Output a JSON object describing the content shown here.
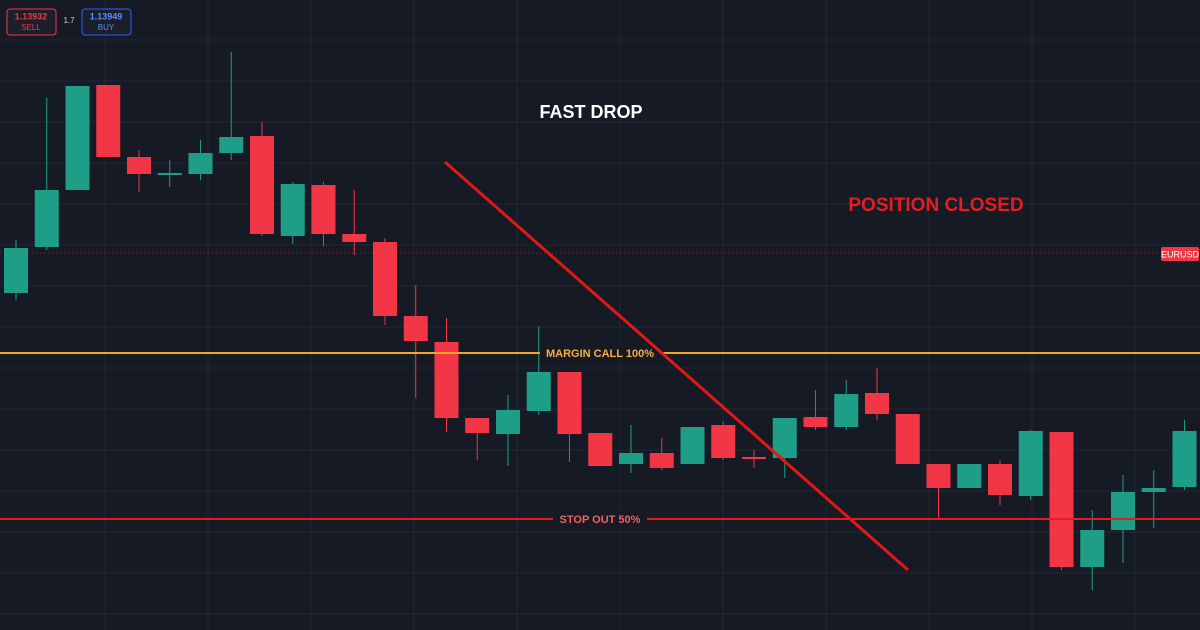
{
  "toolbar": {
    "sell_price": "1.13932",
    "sell_label": "SELL",
    "spread": "1.7",
    "buy_price": "1.13949",
    "buy_label": "BUY"
  },
  "annotations": {
    "fast_drop": "FAST DROP",
    "position_closed": "POSITION CLOSED",
    "margin_call": "MARGIN CALL 100%",
    "stop_out": "STOP OUT 50%"
  },
  "symbol_tag": "EURUSD"
}
